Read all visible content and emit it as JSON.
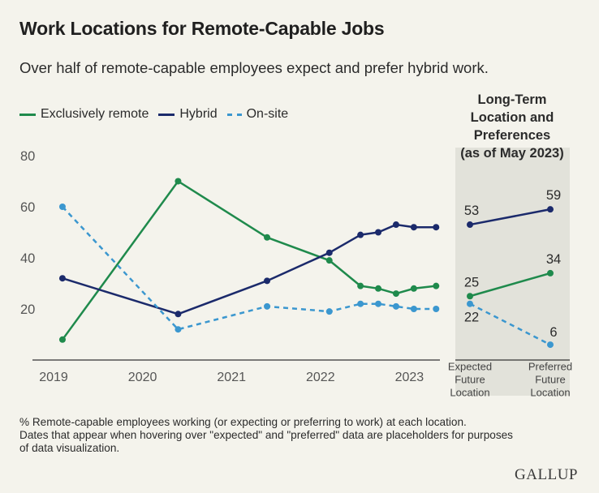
{
  "title": "Work Locations for Remote-Capable Jobs",
  "subtitle": "Over half of remote-capable employees expect and prefer hybrid work.",
  "legend": [
    {
      "label": "Exclusively remote",
      "color": "#1f8a4c",
      "dash": false
    },
    {
      "label": "Hybrid",
      "color": "#1b2a6b",
      "dash": false
    },
    {
      "label": "On-site",
      "color": "#3b97cf",
      "dash": true
    }
  ],
  "panel": {
    "title_lines": [
      "Long-Term",
      "Location and",
      "Preferences",
      "(as of May 2023)"
    ],
    "categories": [
      [
        "Expected",
        "Future",
        "Location"
      ],
      [
        "Preferred",
        "Future",
        "Location"
      ]
    ]
  },
  "footnote": [
    "% Remote-capable employees working (or expecting or preferring to work) at each location.",
    "Dates that appear when hovering over \"expected\" and \"preferred\" data are placeholders for purposes",
    "of data visualization."
  ],
  "logo": "GALLUP",
  "chart_data": {
    "type": "line",
    "title": "Work Locations for Remote-Capable Jobs",
    "x_ticks": [
      "2019",
      "2020",
      "2021",
      "2022",
      "2023"
    ],
    "y_ticks": [
      20,
      40,
      60,
      80
    ],
    "ylim": [
      0,
      85
    ],
    "grid": false,
    "legend_position": "top-left",
    "series": [
      {
        "name": "Exclusively remote",
        "color": "#1f8a4c",
        "dash": false,
        "points": [
          {
            "x": 2019.1,
            "y": 8
          },
          {
            "x": 2020.4,
            "y": 70
          },
          {
            "x": 2021.4,
            "y": 48
          },
          {
            "x": 2022.1,
            "y": 39
          },
          {
            "x": 2022.45,
            "y": 29
          },
          {
            "x": 2022.65,
            "y": 28
          },
          {
            "x": 2022.85,
            "y": 26
          },
          {
            "x": 2023.05,
            "y": 28
          },
          {
            "x": 2023.3,
            "y": 29
          }
        ],
        "panel_values": [
          25,
          34
        ]
      },
      {
        "name": "Hybrid",
        "color": "#1b2a6b",
        "dash": false,
        "points": [
          {
            "x": 2019.1,
            "y": 32
          },
          {
            "x": 2020.4,
            "y": 18
          },
          {
            "x": 2021.4,
            "y": 31
          },
          {
            "x": 2022.1,
            "y": 42
          },
          {
            "x": 2022.45,
            "y": 49
          },
          {
            "x": 2022.65,
            "y": 50
          },
          {
            "x": 2022.85,
            "y": 53
          },
          {
            "x": 2023.05,
            "y": 52
          },
          {
            "x": 2023.3,
            "y": 52
          }
        ],
        "panel_values": [
          53,
          59
        ]
      },
      {
        "name": "On-site",
        "color": "#3b97cf",
        "dash": true,
        "points": [
          {
            "x": 2019.1,
            "y": 60
          },
          {
            "x": 2020.4,
            "y": 12
          },
          {
            "x": 2021.4,
            "y": 21
          },
          {
            "x": 2022.1,
            "y": 19
          },
          {
            "x": 2022.45,
            "y": 22
          },
          {
            "x": 2022.65,
            "y": 22
          },
          {
            "x": 2022.85,
            "y": 21
          },
          {
            "x": 2023.05,
            "y": 20
          },
          {
            "x": 2023.3,
            "y": 20
          }
        ],
        "panel_values": [
          22,
          6
        ]
      }
    ]
  }
}
